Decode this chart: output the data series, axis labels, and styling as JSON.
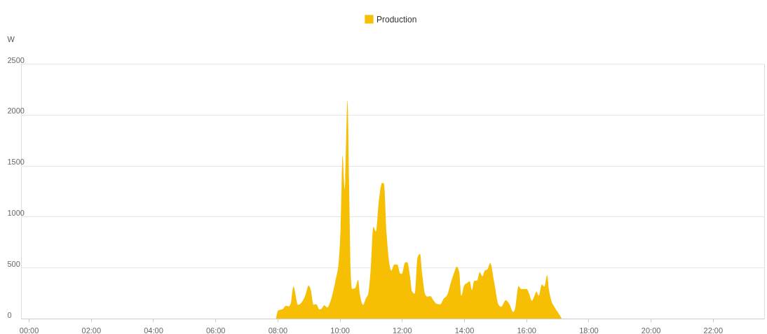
{
  "chart_data": {
    "type": "area",
    "ylabel": "W",
    "legend": "top",
    "grid": "y",
    "xlim": [
      -0.25,
      23.65
    ],
    "ylim": [
      0,
      2500
    ],
    "yticks": [
      0,
      500,
      1000,
      1500,
      2000,
      2500
    ],
    "xticks": [
      {
        "value": 0,
        "label": "00:00"
      },
      {
        "value": 2,
        "label": "02:00"
      },
      {
        "value": 4,
        "label": "04:00"
      },
      {
        "value": 6,
        "label": "06:00"
      },
      {
        "value": 8,
        "label": "08:00"
      },
      {
        "value": 10,
        "label": "10:00"
      },
      {
        "value": 12,
        "label": "12:00"
      },
      {
        "value": 14,
        "label": "14:00"
      },
      {
        "value": 16,
        "label": "16:00"
      },
      {
        "value": 18,
        "label": "18:00"
      },
      {
        "value": 20,
        "label": "20:00"
      },
      {
        "value": 22,
        "label": "22:00"
      }
    ],
    "series": [
      {
        "name": "Production",
        "color": "#f6bf04",
        "x": [
          7.95,
          8.02,
          8.17,
          8.27,
          8.36,
          8.42,
          8.51,
          8.66,
          8.73,
          8.89,
          9.0,
          9.07,
          9.16,
          9.25,
          9.34,
          9.41,
          9.5,
          9.6,
          9.67,
          9.79,
          9.86,
          9.97,
          10.03,
          10.09,
          10.16,
          10.25,
          10.31,
          10.35,
          10.4,
          10.5,
          10.59,
          10.65,
          10.75,
          10.84,
          10.91,
          10.99,
          11.08,
          11.16,
          11.25,
          11.36,
          11.42,
          11.51,
          11.59,
          11.66,
          11.75,
          11.85,
          11.95,
          12.0,
          12.1,
          12.17,
          12.26,
          12.32,
          12.41,
          12.5,
          12.58,
          12.65,
          12.75,
          12.82,
          12.92,
          13.01,
          13.12,
          13.24,
          13.33,
          13.46,
          13.57,
          13.69,
          13.76,
          13.84,
          13.91,
          14.0,
          14.1,
          14.18,
          14.25,
          14.32,
          14.42,
          14.5,
          14.59,
          14.66,
          14.75,
          14.84,
          14.96,
          15.11,
          15.19,
          15.34,
          15.45,
          15.58,
          15.64,
          15.75,
          15.83,
          16.01,
          16.09,
          16.18,
          16.25,
          16.33,
          16.4,
          16.5,
          16.58,
          16.67,
          16.73,
          16.8,
          16.91,
          17.03,
          17.1,
          17.14
        ],
        "values": [
          0,
          80,
          95,
          125,
          120,
          145,
          315,
          135,
          145,
          225,
          325,
          280,
          135,
          140,
          90,
          95,
          130,
          110,
          145,
          270,
          370,
          570,
          910,
          1600,
          1270,
          2140,
          1130,
          460,
          290,
          300,
          380,
          235,
          135,
          200,
          235,
          460,
          900,
          855,
          1130,
          1330,
          1325,
          820,
          550,
          470,
          530,
          530,
          440,
          440,
          550,
          555,
          415,
          270,
          245,
          595,
          635,
          440,
          235,
          215,
          220,
          180,
          145,
          140,
          190,
          235,
          350,
          460,
          510,
          460,
          225,
          325,
          350,
          365,
          280,
          370,
          375,
          455,
          415,
          470,
          485,
          545,
          370,
          135,
          115,
          180,
          145,
          65,
          100,
          320,
          290,
          290,
          245,
          175,
          215,
          265,
          225,
          335,
          315,
          425,
          280,
          180,
          110,
          55,
          20,
          0
        ]
      }
    ]
  }
}
